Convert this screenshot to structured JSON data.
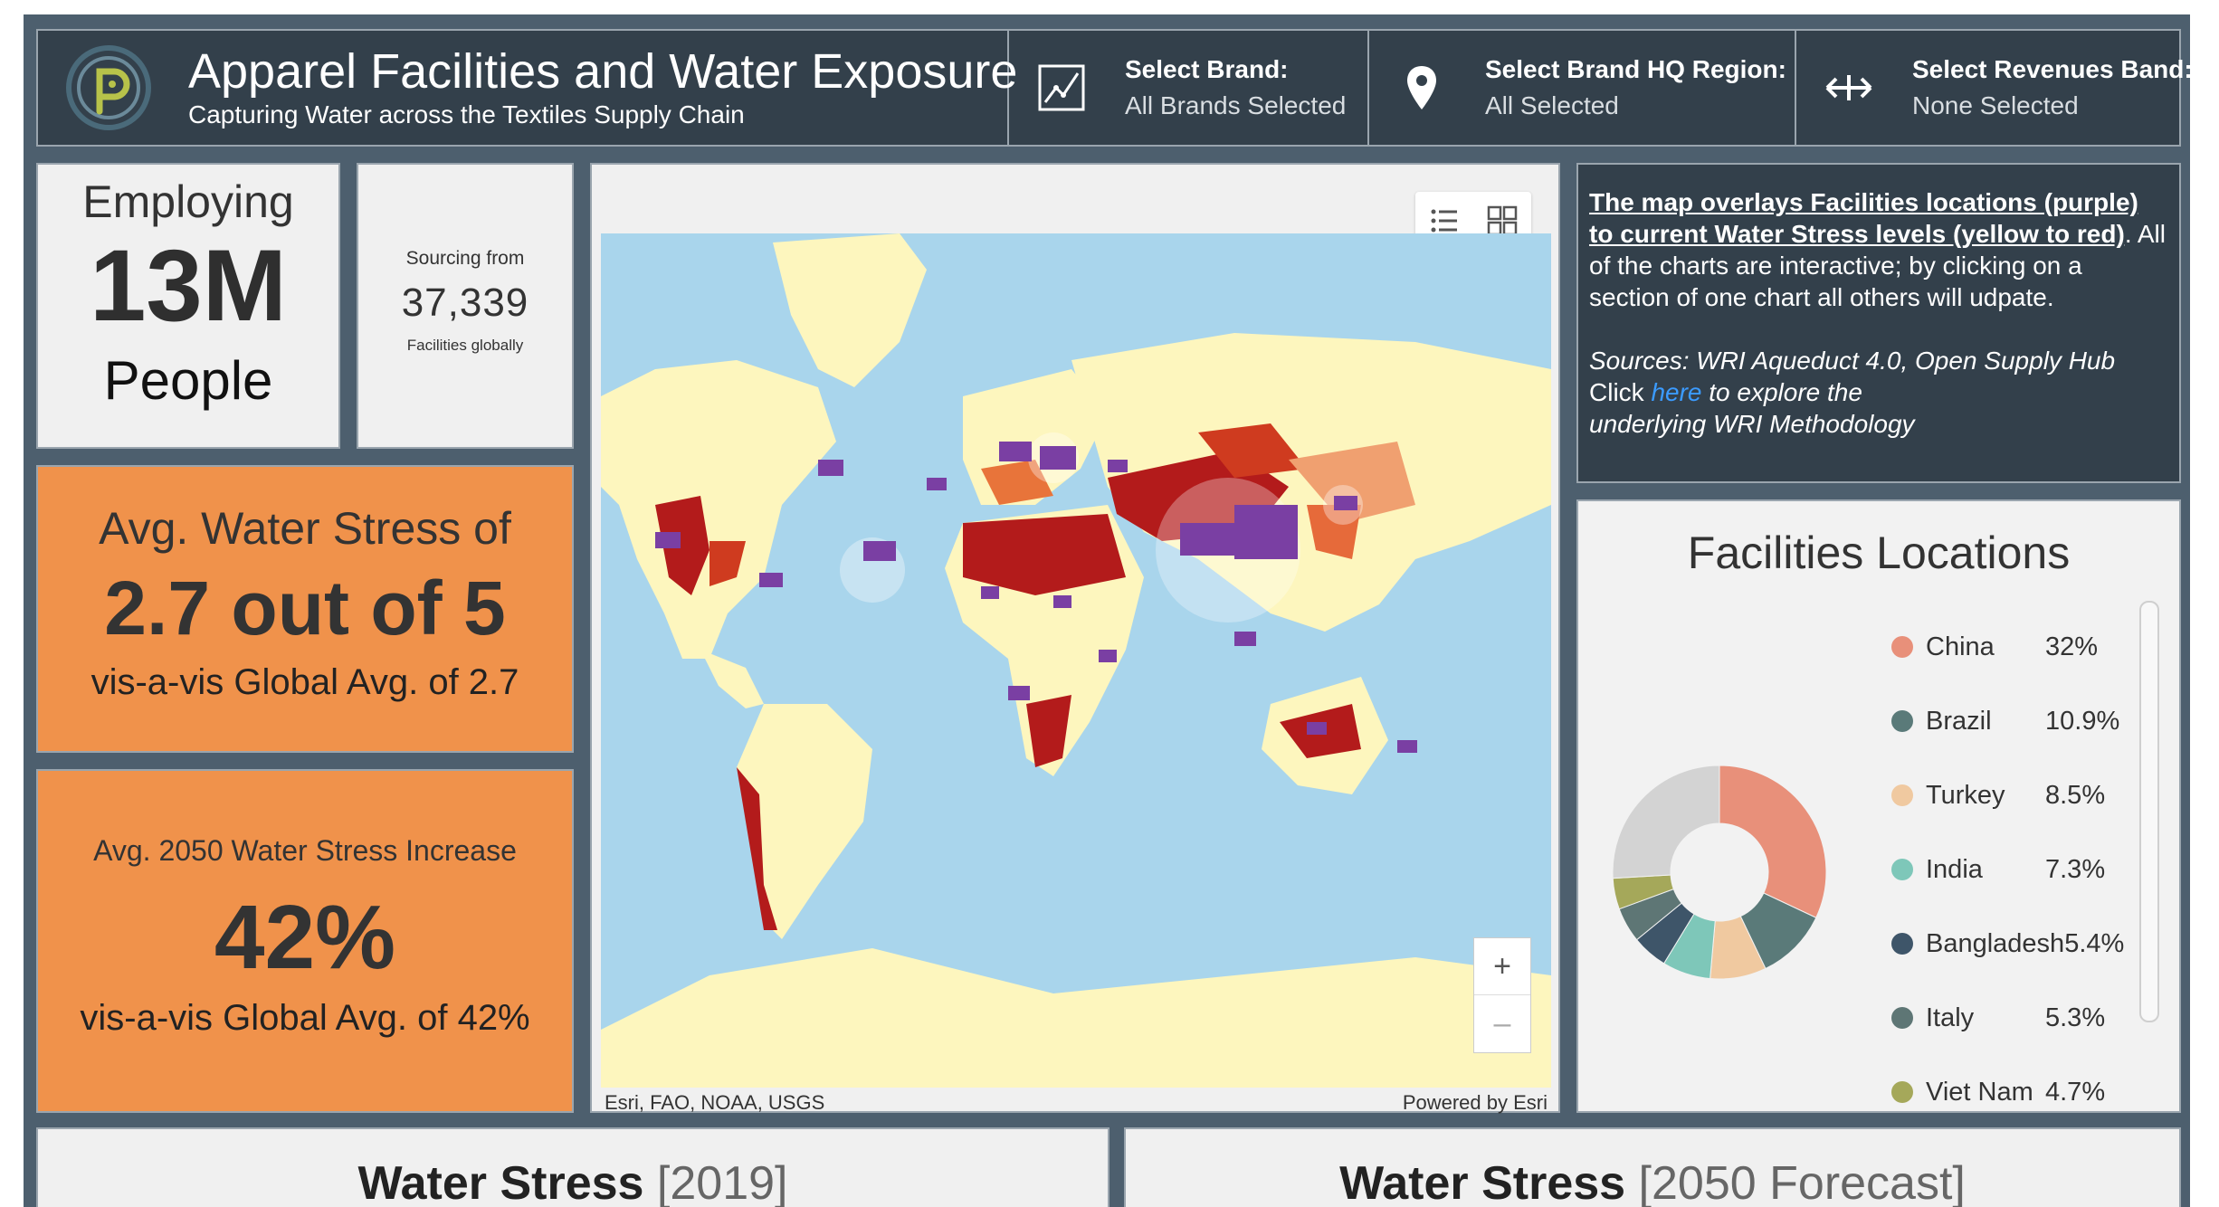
{
  "header": {
    "title": "Apparel Facilities and Water Exposure",
    "subtitle": "Capturing Water across the Textiles Supply Chain",
    "filters": [
      {
        "label": "Select Brand:",
        "value": "All Brands Selected",
        "icon": "chart-icon"
      },
      {
        "label": "Select Brand HQ Region:",
        "value": "All Selected",
        "icon": "location-pin-icon"
      },
      {
        "label": "Select Revenues Band:",
        "value": "None Selected",
        "icon": "arrows-icon"
      }
    ]
  },
  "kpis": {
    "employ_label": "Employing",
    "employ_value": "13M",
    "employ_unit": "People",
    "sourcing_label": "Sourcing from",
    "sourcing_value": "37,339",
    "sourcing_unit": "Facilities globally",
    "stress_label": "Avg. Water Stress of",
    "stress_value": "2.7 out of 5",
    "stress_compare": "vis-a-vis Global Avg. of 2.7",
    "increase_label": "Avg. 2050 Water Stress Increase",
    "increase_value": "42%",
    "increase_compare": "vis-a-vis Global Avg. of 42%"
  },
  "map": {
    "attribution_left": "Esri, FAO, NOAA, USGS",
    "attribution_right": "Powered by Esri",
    "zoom_in": "+",
    "zoom_out": "–"
  },
  "info": {
    "intro_underlined": "The map overlays Facilities locations (purple) to current Water Stress levels (yellow to red)",
    "intro_rest": ". All of the charts are interactive; by clicking on a section of one chart all others will udpate.",
    "sources": "Sources: WRI Aqueduct 4.0, Open Supply Hub",
    "click": "Click ",
    "link": "here",
    "click_rest": " to explore the",
    "click_rest2": "underlying WRI Methodology"
  },
  "facilities": {
    "title": "Facilities Locations",
    "items": [
      {
        "name": "China",
        "pct": "32%",
        "color": "#e8907a"
      },
      {
        "name": "Brazil",
        "pct": "10.9%",
        "color": "#5a7a79"
      },
      {
        "name": "Turkey",
        "pct": "8.5%",
        "color": "#f0c9a0"
      },
      {
        "name": "India",
        "pct": "7.3%",
        "color": "#7ec7b9"
      },
      {
        "name": "Bangladesh",
        "pct": "5.4%",
        "color": "#3e5569"
      },
      {
        "name": "Italy",
        "pct": "5.3%",
        "color": "#5e7675"
      },
      {
        "name": "Viet Nam",
        "pct": "4.7%",
        "color": "#a5a85a"
      }
    ],
    "other_color": "#d3d3d3"
  },
  "bottom": {
    "left_bold": "Water Stress",
    "left_light": " [2019]",
    "right_bold": "Water Stress",
    "right_light": " [2050 Forecast]"
  }
}
